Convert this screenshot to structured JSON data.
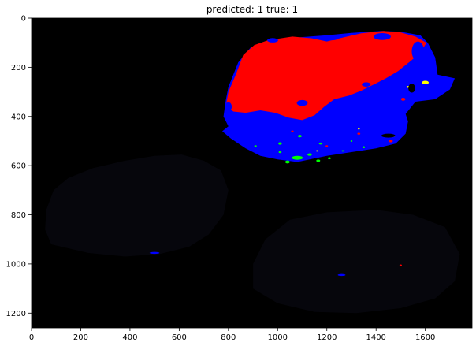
{
  "chart_data": {
    "type": "image",
    "title": "predicted: 1  true: 1",
    "xlabel": "",
    "ylabel": "",
    "xlim": [
      0,
      1790
    ],
    "ylim": [
      1260,
      0
    ],
    "x_ticks": [
      0,
      200,
      400,
      600,
      800,
      1000,
      1200,
      1400,
      1600
    ],
    "y_ticks": [
      0,
      200,
      400,
      600,
      800,
      1000,
      1200
    ],
    "background_color": "#000000",
    "legend": "none",
    "colors": {
      "class_red": "#ff0000",
      "class_blue": "#0000ff",
      "class_green": "#00ff00",
      "class_yellow": "#ffff00",
      "faint_region": "#06060c"
    },
    "regions": [
      {
        "name": "blue-segment",
        "color": "#0000ff",
        "polygon": [
          [
            800,
            440
          ],
          [
            780,
            400
          ],
          [
            790,
            330
          ],
          [
            800,
            280
          ],
          [
            840,
            180
          ],
          [
            890,
            120
          ],
          [
            950,
            95
          ],
          [
            1060,
            80
          ],
          [
            1200,
            70
          ],
          [
            1300,
            60
          ],
          [
            1420,
            52
          ],
          [
            1500,
            55
          ],
          [
            1580,
            70
          ],
          [
            1610,
            100
          ],
          [
            1640,
            160
          ],
          [
            1650,
            230
          ],
          [
            1720,
            245
          ],
          [
            1700,
            290
          ],
          [
            1640,
            330
          ],
          [
            1560,
            340
          ],
          [
            1520,
            390
          ],
          [
            1530,
            420
          ],
          [
            1520,
            470
          ],
          [
            1480,
            510
          ],
          [
            1400,
            530
          ],
          [
            1300,
            545
          ],
          [
            1200,
            560
          ],
          [
            1080,
            585
          ],
          [
            1000,
            575
          ],
          [
            930,
            560
          ],
          [
            870,
            530
          ],
          [
            810,
            490
          ],
          [
            775,
            460
          ]
        ]
      },
      {
        "name": "red-segment",
        "color": "#ff0000",
        "polygon": [
          [
            790,
            355
          ],
          [
            800,
            300
          ],
          [
            830,
            230
          ],
          [
            860,
            150
          ],
          [
            905,
            110
          ],
          [
            960,
            90
          ],
          [
            1060,
            75
          ],
          [
            1140,
            82
          ],
          [
            1200,
            95
          ],
          [
            1270,
            78
          ],
          [
            1340,
            62
          ],
          [
            1430,
            52
          ],
          [
            1500,
            58
          ],
          [
            1560,
            75
          ],
          [
            1605,
            100
          ],
          [
            1580,
            140
          ],
          [
            1540,
            175
          ],
          [
            1490,
            215
          ],
          [
            1440,
            245
          ],
          [
            1400,
            265
          ],
          [
            1340,
            295
          ],
          [
            1290,
            315
          ],
          [
            1230,
            330
          ],
          [
            1190,
            360
          ],
          [
            1150,
            395
          ],
          [
            1100,
            415
          ],
          [
            1045,
            405
          ],
          [
            990,
            385
          ],
          [
            930,
            375
          ],
          [
            870,
            385
          ],
          [
            820,
            380
          ]
        ]
      },
      {
        "name": "faint-left-shape",
        "color": "#06060c",
        "polygon": [
          [
            80,
            920
          ],
          [
            55,
            860
          ],
          [
            60,
            780
          ],
          [
            90,
            700
          ],
          [
            150,
            650
          ],
          [
            250,
            610
          ],
          [
            380,
            580
          ],
          [
            500,
            560
          ],
          [
            610,
            555
          ],
          [
            700,
            580
          ],
          [
            770,
            620
          ],
          [
            800,
            700
          ],
          [
            780,
            800
          ],
          [
            720,
            880
          ],
          [
            640,
            930
          ],
          [
            520,
            960
          ],
          [
            380,
            970
          ],
          [
            230,
            955
          ]
        ]
      },
      {
        "name": "faint-right-shape",
        "color": "#06060c",
        "polygon": [
          [
            900,
            1100
          ],
          [
            900,
            1000
          ],
          [
            950,
            900
          ],
          [
            1050,
            820
          ],
          [
            1200,
            790
          ],
          [
            1400,
            780
          ],
          [
            1550,
            800
          ],
          [
            1680,
            850
          ],
          [
            1740,
            960
          ],
          [
            1720,
            1070
          ],
          [
            1640,
            1140
          ],
          [
            1500,
            1180
          ],
          [
            1320,
            1200
          ],
          [
            1150,
            1195
          ],
          [
            1000,
            1160
          ]
        ]
      }
    ],
    "speckles": [
      {
        "color": "#0000ff",
        "cx": 1425,
        "cy": 75,
        "rx": 35,
        "ry": 14
      },
      {
        "color": "#0000ff",
        "cx": 1220,
        "cy": 80,
        "rx": 28,
        "ry": 10
      },
      {
        "color": "#0000ff",
        "cx": 980,
        "cy": 90,
        "rx": 22,
        "ry": 9
      },
      {
        "color": "#0000ff",
        "cx": 1570,
        "cy": 135,
        "rx": 25,
        "ry": 40
      },
      {
        "color": "#0000ff",
        "cx": 1500,
        "cy": 260,
        "rx": 30,
        "ry": 18
      },
      {
        "color": "#0000ff",
        "cx": 1360,
        "cy": 270,
        "rx": 18,
        "ry": 9
      },
      {
        "color": "#0000ff",
        "cx": 1100,
        "cy": 345,
        "rx": 22,
        "ry": 12
      },
      {
        "color": "#0000ff",
        "cx": 800,
        "cy": 360,
        "rx": 14,
        "ry": 18
      },
      {
        "color": "#00ff00",
        "cx": 1080,
        "cy": 568,
        "rx": 22,
        "ry": 8
      },
      {
        "color": "#00ff00",
        "cx": 1040,
        "cy": 585,
        "rx": 9,
        "ry": 6
      },
      {
        "color": "#00ff00",
        "cx": 1130,
        "cy": 555,
        "rx": 9,
        "ry": 5
      },
      {
        "color": "#00ff00",
        "cx": 1175,
        "cy": 510,
        "rx": 7,
        "ry": 4
      },
      {
        "color": "#00ff00",
        "cx": 1090,
        "cy": 480,
        "rx": 8,
        "ry": 5
      },
      {
        "color": "#00ff00",
        "cx": 1010,
        "cy": 510,
        "rx": 7,
        "ry": 5
      },
      {
        "color": "#00ff00",
        "cx": 1010,
        "cy": 545,
        "rx": 6,
        "ry": 4
      },
      {
        "color": "#00ff00",
        "cx": 1210,
        "cy": 570,
        "rx": 6,
        "ry": 4
      },
      {
        "color": "#00ff00",
        "cx": 1165,
        "cy": 580,
        "rx": 8,
        "ry": 5
      },
      {
        "color": "#00ff00",
        "cx": 1350,
        "cy": 525,
        "rx": 5,
        "ry": 4
      },
      {
        "color": "#00ff00",
        "cx": 1265,
        "cy": 540,
        "rx": 5,
        "ry": 3
      },
      {
        "color": "#00ff00",
        "cx": 910,
        "cy": 520,
        "rx": 5,
        "ry": 3
      },
      {
        "color": "#00ff00",
        "cx": 1300,
        "cy": 500,
        "rx": 4,
        "ry": 3
      },
      {
        "color": "#ff0000",
        "cx": 1460,
        "cy": 500,
        "rx": 8,
        "ry": 5
      },
      {
        "color": "#ff0000",
        "cx": 1330,
        "cy": 470,
        "rx": 6,
        "ry": 4
      },
      {
        "color": "#ff0000",
        "cx": 1200,
        "cy": 520,
        "rx": 5,
        "ry": 3
      },
      {
        "color": "#ff0000",
        "cx": 1510,
        "cy": 330,
        "rx": 9,
        "ry": 6
      },
      {
        "color": "#ff0000",
        "cx": 1500,
        "cy": 1005,
        "rx": 5,
        "ry": 3
      },
      {
        "color": "#ff0000",
        "cx": 1060,
        "cy": 460,
        "rx": 5,
        "ry": 3
      },
      {
        "color": "#ffff00",
        "cx": 1600,
        "cy": 262,
        "rx": 14,
        "ry": 7
      },
      {
        "color": "#ffff00",
        "cx": 1530,
        "cy": 280,
        "rx": 6,
        "ry": 4
      },
      {
        "color": "#ffff00",
        "cx": 1470,
        "cy": 480,
        "rx": 6,
        "ry": 3
      },
      {
        "color": "#ffff00",
        "cx": 1330,
        "cy": 450,
        "rx": 4,
        "ry": 3
      },
      {
        "color": "#ffff00",
        "cx": 1160,
        "cy": 540,
        "rx": 4,
        "ry": 3
      },
      {
        "color": "#000000",
        "cx": 1450,
        "cy": 478,
        "rx": 28,
        "ry": 8
      },
      {
        "color": "#000000",
        "cx": 1545,
        "cy": 285,
        "rx": 14,
        "ry": 18
      },
      {
        "color": "#0000ff",
        "cx": 500,
        "cy": 955,
        "rx": 20,
        "ry": 4
      },
      {
        "color": "#0000ff",
        "cx": 1260,
        "cy": 1045,
        "rx": 16,
        "ry": 4
      }
    ]
  }
}
